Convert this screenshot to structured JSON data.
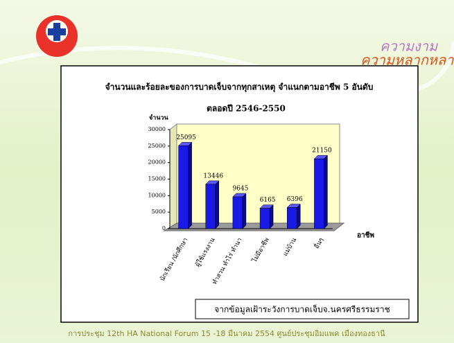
{
  "logo": {
    "line1": "ความงาม",
    "line2": "ความหลากหลาย"
  },
  "chart_data": {
    "type": "bar",
    "title": "จำนวนและร้อยละของการบาดเจ็บจากทุกสาเหตุ จำแนกตามอาชีพ 5 อันดับ",
    "subtitle": "ตลอดปี 2546-2550",
    "y_label": "จำนวน",
    "x_label": "อาชีพ",
    "categories": [
      "นักเรียน /นักศึกษา",
      "ผู้ใช้แรงงาน",
      "ทำสวน ทำไร่ ทำนา",
      "ไม่มีอาชีพ",
      "แม่บ้าน",
      "อื่นๆ"
    ],
    "values": [
      25095,
      13446,
      9645,
      6165,
      6396,
      21150
    ],
    "color": "#1a1ae6",
    "ylim": [
      0,
      30000
    ],
    "yticks": [
      0,
      5000,
      10000,
      15000,
      20000,
      25000,
      30000
    ],
    "grid": false
  },
  "source": "จากข้อมูลเฝ้าระวังการบาดเจ็บจ.นครศรีธรรมราช",
  "footer": "การประชุม 12th HA National Forum 15 -18 มีนาคม 2554 ศูนย์ประชุมอิมแพค เมืองทองธานี"
}
